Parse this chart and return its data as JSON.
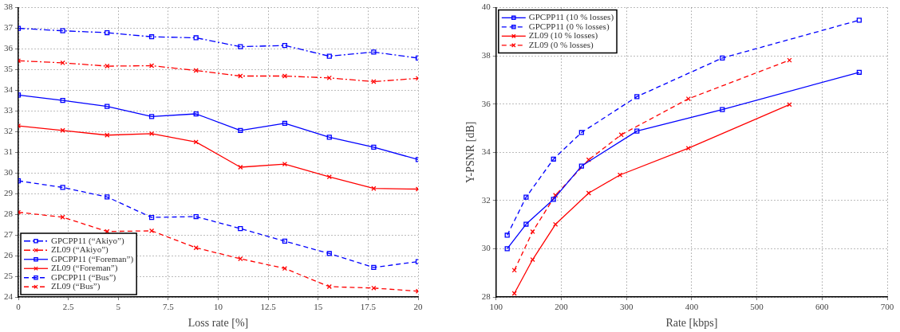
{
  "chart_data": [
    {
      "type": "line",
      "xlabel": "Loss rate [%]",
      "xlim": [
        0,
        20
      ],
      "xticks": [
        0,
        2.5,
        5,
        7.5,
        10,
        12.5,
        15,
        17.5,
        20
      ],
      "ylim": [
        24,
        38
      ],
      "yticks": [
        24,
        25,
        26,
        27,
        28,
        29,
        30,
        31,
        32,
        33,
        34,
        35,
        36,
        37,
        38
      ],
      "grid": true,
      "legend": "bottom left",
      "x": [
        0,
        2.22,
        4.44,
        6.67,
        8.89,
        11.11,
        13.33,
        15.56,
        17.78,
        20
      ],
      "series": [
        {
          "name": "GPCPP11 (“Akiyo”)",
          "color": "#0000ff",
          "marker": "square",
          "line_style": "dashdot",
          "values": [
            37.0,
            36.88,
            36.79,
            36.59,
            36.54,
            36.11,
            36.17,
            35.65,
            35.85,
            35.56
          ]
        },
        {
          "name": "ZL09 (“Akiyo”)",
          "color": "#ff0000",
          "marker": "cross",
          "line_style": "dashdot",
          "values": [
            35.43,
            35.33,
            35.17,
            35.19,
            34.96,
            34.69,
            34.69,
            34.6,
            34.42,
            34.58
          ]
        },
        {
          "name": "GPCPP11 (“Foreman”)",
          "color": "#0000ff",
          "marker": "square",
          "line_style": "solid",
          "values": [
            33.77,
            33.51,
            33.22,
            32.73,
            32.86,
            32.06,
            32.4,
            31.73,
            31.25,
            30.65
          ]
        },
        {
          "name": "ZL09 (“Foreman”)",
          "color": "#ff0000",
          "marker": "cross",
          "line_style": "solid",
          "values": [
            32.28,
            32.06,
            31.83,
            31.9,
            31.5,
            30.28,
            30.43,
            29.81,
            29.25,
            29.22
          ]
        },
        {
          "name": "GPCPP11 (“Bus”)",
          "color": "#0000ff",
          "marker": "square",
          "line_style": "dashed",
          "values": [
            29.62,
            29.3,
            28.84,
            27.85,
            27.89,
            27.31,
            26.7,
            26.1,
            25.43,
            25.71
          ]
        },
        {
          "name": "ZL09 (“Bus”)",
          "color": "#ff0000",
          "marker": "cross",
          "line_style": "dashed",
          "values": [
            28.1,
            27.86,
            27.17,
            27.2,
            26.38,
            25.85,
            25.38,
            24.5,
            24.43,
            24.28
          ]
        }
      ]
    },
    {
      "type": "line",
      "xlabel": "Rate [kbps]",
      "ylabel": "Y-PSNR [dB]",
      "xlim": [
        100,
        700
      ],
      "xticks": [
        100,
        200,
        300,
        400,
        500,
        600,
        700
      ],
      "ylim": [
        28,
        40
      ],
      "yticks": [
        28,
        30,
        32,
        34,
        36,
        38,
        40
      ],
      "grid": true,
      "legend": "top left",
      "series": [
        {
          "name": "GPCPP11 (10 % losses)",
          "color": "#0000ff",
          "marker": "square",
          "line_style": "solid",
          "x": [
            117,
            146,
            188,
            231,
            316,
            447,
            657
          ],
          "values": [
            30.0,
            31.02,
            32.05,
            33.43,
            34.88,
            35.77,
            37.32
          ]
        },
        {
          "name": "GPCPP11 (0 % losses)",
          "color": "#0000ff",
          "marker": "square",
          "line_style": "dashed",
          "x": [
            117,
            146,
            188,
            231,
            316,
            447,
            657
          ],
          "values": [
            30.56,
            32.14,
            33.72,
            34.82,
            36.31,
            37.91,
            39.48
          ]
        },
        {
          "name": "ZL09 (10 % losses)",
          "color": "#ff0000",
          "marker": "cross",
          "line_style": "solid",
          "x": [
            128,
            156,
            191,
            242,
            290,
            395,
            550
          ],
          "values": [
            28.15,
            29.55,
            31.01,
            32.31,
            33.06,
            34.17,
            35.98
          ]
        },
        {
          "name": "ZL09 (0 % losses)",
          "color": "#ff0000",
          "marker": "cross",
          "line_style": "dashed",
          "x": [
            128,
            156,
            191,
            242,
            292,
            395,
            550
          ],
          "values": [
            29.11,
            30.71,
            32.22,
            33.69,
            34.73,
            36.22,
            37.82
          ]
        }
      ]
    }
  ]
}
